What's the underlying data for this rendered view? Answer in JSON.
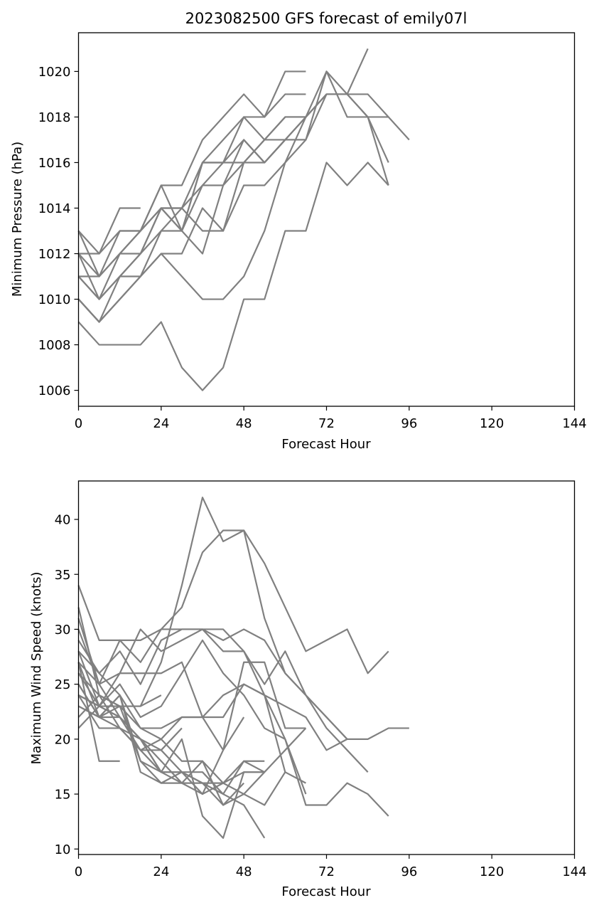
{
  "chart_data": [
    {
      "type": "line",
      "title": "2023082500 GFS forecast of emily07l",
      "xlabel": "Forecast Hour",
      "ylabel": "Minimum Pressure (hPa)",
      "xlim": [
        0,
        144
      ],
      "ylim": [
        1005.3,
        1021.7
      ],
      "xticks": [
        0,
        24,
        48,
        72,
        96,
        120,
        144
      ],
      "yticks": [
        1006,
        1008,
        1010,
        1012,
        1014,
        1016,
        1018,
        1020
      ],
      "line_color": "#808080",
      "grid": false,
      "series": [
        {
          "x": [
            0,
            6,
            12,
            18
          ],
          "y": [
            1013,
            1012,
            1014,
            1014
          ]
        },
        {
          "x": [
            0,
            6,
            12,
            18,
            24,
            30,
            36,
            42,
            48,
            54,
            60,
            66
          ],
          "y": [
            1012,
            1012,
            1013,
            1013,
            1015,
            1015,
            1017,
            1018,
            1019,
            1018,
            1020,
            1020
          ]
        },
        {
          "x": [
            0,
            6,
            12,
            18,
            24,
            30,
            36,
            42,
            48,
            54,
            60,
            66
          ],
          "y": [
            1012,
            1011,
            1012,
            1013,
            1014,
            1014,
            1016,
            1016,
            1018,
            1018,
            1019,
            1019
          ]
        },
        {
          "x": [
            0,
            6,
            12,
            18,
            24,
            30,
            36,
            42,
            48,
            54,
            60,
            66,
            72,
            78,
            84
          ],
          "y": [
            1011,
            1011,
            1012,
            1013,
            1015,
            1013,
            1016,
            1017,
            1018,
            1017,
            1018,
            1018,
            1020,
            1019,
            1021
          ]
        },
        {
          "x": [
            0,
            6,
            12,
            18,
            24,
            30,
            36,
            42,
            48,
            54,
            60,
            66,
            72,
            78,
            84,
            90,
            96
          ],
          "y": [
            1013,
            1011,
            1013,
            1013,
            1014,
            1014,
            1015,
            1016,
            1016,
            1017,
            1017,
            1018,
            1019,
            1019,
            1018,
            1018,
            1017
          ]
        },
        {
          "x": [
            0,
            6,
            12,
            18,
            24,
            30,
            36,
            42,
            48,
            54,
            60,
            66,
            72,
            78,
            84,
            90
          ],
          "y": [
            1012,
            1010,
            1011,
            1011,
            1013,
            1013,
            1016,
            1016,
            1017,
            1016,
            1017,
            1017,
            1020,
            1018,
            1018,
            1016
          ]
        },
        {
          "x": [
            0,
            6,
            12,
            18,
            24,
            30,
            36,
            42,
            48,
            54,
            60,
            66,
            72,
            78,
            84,
            90
          ],
          "y": [
            1011,
            1010,
            1012,
            1012,
            1014,
            1013,
            1015,
            1015,
            1017,
            1016,
            1017,
            1018,
            1019,
            1019,
            1019,
            1018
          ]
        },
        {
          "x": [
            0,
            6,
            12,
            18,
            24,
            30,
            36,
            42,
            48,
            54,
            60,
            66,
            72,
            78,
            84,
            90
          ],
          "y": [
            1010,
            1009,
            1010,
            1011,
            1012,
            1012,
            1014,
            1013,
            1015,
            1015,
            1016,
            1017,
            1019,
            1019,
            1018,
            1015
          ]
        },
        {
          "x": [
            0,
            6,
            12,
            18,
            24,
            30,
            36,
            42,
            48,
            54,
            60,
            66
          ],
          "y": [
            1011,
            1010,
            1011,
            1012,
            1013,
            1014,
            1013,
            1013,
            1016,
            1016,
            1017,
            1017
          ]
        },
        {
          "x": [
            0,
            6,
            12,
            18,
            24,
            30,
            36,
            42,
            48,
            54,
            60,
            66,
            72
          ],
          "y": [
            1010,
            1009,
            1011,
            1012,
            1014,
            1013,
            1012,
            1015,
            1016,
            1017,
            1018,
            1018,
            1019
          ]
        },
        {
          "x": [
            0,
            6,
            12,
            18,
            24,
            30,
            36,
            42,
            48,
            54,
            60,
            66
          ],
          "y": [
            1010,
            1009,
            1010,
            1011,
            1012,
            1011,
            1010,
            1010,
            1011,
            1013,
            1016,
            1018
          ]
        },
        {
          "x": [
            0,
            6,
            12,
            18,
            24,
            30,
            36,
            42,
            48,
            54,
            60,
            66,
            72,
            78,
            84,
            90
          ],
          "y": [
            1009,
            1008,
            1008,
            1008,
            1009,
            1007,
            1006,
            1007,
            1010,
            1010,
            1013,
            1013,
            1016,
            1015,
            1016,
            1015
          ]
        }
      ]
    },
    {
      "type": "line",
      "title": "",
      "xlabel": "Forecast Hour",
      "ylabel": "Maximum Wind Speed (knots)",
      "xlim": [
        0,
        144
      ],
      "ylim": [
        9.5,
        43.5
      ],
      "xticks": [
        0,
        24,
        48,
        72,
        96,
        120,
        144
      ],
      "yticks": [
        10,
        15,
        20,
        25,
        30,
        35,
        40
      ],
      "line_color": "#808080",
      "grid": false,
      "series": [
        {
          "x": [
            0,
            6,
            12,
            18,
            24,
            30,
            36,
            42,
            48,
            54,
            60,
            66,
            72,
            78,
            84,
            90
          ],
          "y": [
            34,
            29,
            29,
            29,
            30,
            32,
            37,
            39,
            39,
            36,
            32,
            28,
            29,
            30,
            26,
            28
          ]
        },
        {
          "x": [
            0,
            6,
            12,
            18,
            24,
            30,
            36,
            42,
            48,
            54,
            60,
            66,
            72,
            78,
            84,
            90,
            96
          ],
          "y": [
            32,
            24,
            23,
            23,
            27,
            34,
            42,
            38,
            39,
            31,
            26,
            24,
            22,
            20,
            20,
            21,
            21
          ]
        },
        {
          "x": [
            0,
            6,
            12,
            18,
            24,
            30,
            36,
            42,
            48,
            54,
            60,
            66,
            72,
            78,
            84
          ],
          "y": [
            31,
            25,
            26,
            30,
            28,
            29,
            30,
            30,
            28,
            25,
            28,
            24,
            21,
            19,
            17
          ]
        },
        {
          "x": [
            0,
            6,
            12,
            18,
            24,
            30,
            36,
            42,
            48,
            54,
            60,
            66,
            72,
            78
          ],
          "y": [
            30,
            25,
            29,
            27,
            30,
            30,
            30,
            29,
            30,
            29,
            26,
            24,
            22,
            20
          ]
        },
        {
          "x": [
            0,
            6,
            12,
            18,
            24,
            30,
            36,
            42,
            48,
            54,
            60,
            66,
            72,
            78
          ],
          "y": [
            29,
            26,
            28,
            25,
            29,
            30,
            30,
            28,
            28,
            24,
            23,
            22,
            19,
            20
          ]
        },
        {
          "x": [
            0,
            6,
            12,
            18,
            24,
            30,
            36,
            42,
            48,
            54,
            60,
            66
          ],
          "y": [
            28,
            23,
            26,
            26,
            26,
            27,
            22,
            19,
            27,
            27,
            21,
            21
          ]
        },
        {
          "x": [
            0,
            6,
            12
          ],
          "y": [
            27,
            18,
            18
          ]
        },
        {
          "x": [
            0,
            6,
            12,
            18,
            24,
            30,
            36,
            42,
            48,
            54,
            60,
            66,
            72,
            78,
            84,
            90
          ],
          "y": [
            27,
            22,
            23,
            21,
            20,
            22,
            22,
            22,
            25,
            24,
            20,
            14,
            14,
            16,
            15,
            13
          ]
        },
        {
          "x": [
            0,
            6,
            12,
            18,
            24,
            30,
            36,
            42,
            48,
            54,
            60,
            66
          ],
          "y": [
            26,
            23,
            25,
            22,
            23,
            26,
            29,
            26,
            24,
            21,
            20,
            15
          ]
        },
        {
          "x": [
            0,
            6,
            12,
            18,
            24,
            30,
            36,
            42,
            48,
            54,
            60,
            66
          ],
          "y": [
            25,
            22,
            24,
            21,
            21,
            22,
            22,
            24,
            25,
            24,
            17,
            16
          ]
        },
        {
          "x": [
            0,
            6,
            12,
            18,
            24,
            30,
            36,
            42,
            48,
            54
          ],
          "y": [
            24,
            21,
            21,
            19,
            17,
            17,
            17,
            15,
            18,
            18
          ]
        },
        {
          "x": [
            0,
            6,
            12,
            18,
            24,
            30,
            36,
            42,
            48,
            54,
            60,
            66
          ],
          "y": [
            23,
            22,
            24,
            18,
            16,
            17,
            16,
            14,
            15,
            17,
            19,
            21
          ]
        },
        {
          "x": [
            0,
            6,
            12,
            18,
            24,
            30,
            36,
            42,
            48
          ],
          "y": [
            23,
            22,
            21,
            19,
            20,
            18,
            18,
            14,
            16
          ]
        },
        {
          "x": [
            0,
            6,
            12,
            18,
            24,
            30,
            36,
            42,
            48,
            54
          ],
          "y": [
            22,
            24,
            23,
            18,
            17,
            17,
            16,
            16,
            18,
            17
          ]
        },
        {
          "x": [
            0,
            6,
            12,
            18,
            24,
            30,
            36,
            42,
            48,
            54,
            60
          ],
          "y": [
            21,
            23,
            22,
            20,
            18,
            16,
            18,
            16,
            15,
            14,
            17
          ]
        },
        {
          "x": [
            0,
            6,
            12,
            18,
            24,
            30,
            36,
            42,
            48,
            54
          ],
          "y": [
            28,
            26,
            24,
            17,
            16,
            16,
            15,
            16,
            17,
            17
          ]
        },
        {
          "x": [
            0,
            6,
            12,
            18,
            24,
            30,
            36,
            42,
            48,
            54
          ],
          "y": [
            27,
            25,
            22,
            20,
            17,
            20,
            13,
            11,
            17,
            17
          ]
        },
        {
          "x": [
            0,
            6,
            12,
            18,
            24,
            30,
            36,
            42,
            48,
            54
          ],
          "y": [
            26,
            24,
            21,
            20,
            17,
            16,
            16,
            15,
            14,
            11
          ]
        },
        {
          "x": [
            0,
            6,
            12,
            18,
            24,
            30,
            36,
            42,
            48
          ],
          "y": [
            25,
            22,
            22,
            20,
            19,
            17,
            15,
            19,
            22
          ]
        },
        {
          "x": [
            0,
            6,
            12,
            18,
            24
          ],
          "y": [
            24,
            23,
            23,
            23,
            24
          ]
        },
        {
          "x": [
            0,
            6,
            12,
            18,
            24,
            30
          ],
          "y": [
            24,
            23,
            22,
            19,
            19,
            21
          ]
        }
      ]
    }
  ]
}
